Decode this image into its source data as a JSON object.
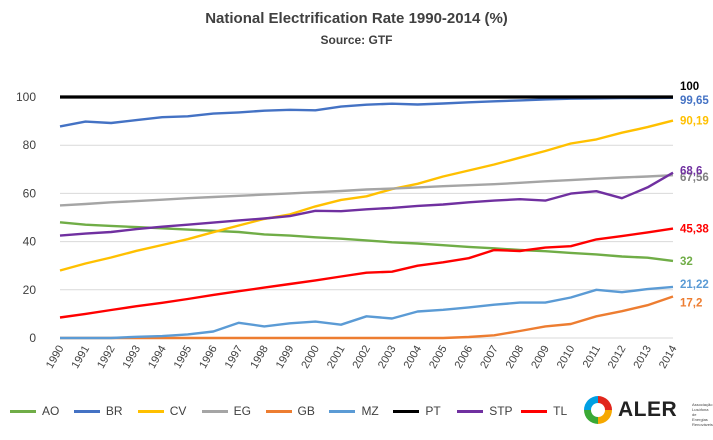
{
  "chart_data": {
    "type": "line",
    "title": "National Electrification Rate 1990-2014 (%)",
    "subtitle": "Source: GTF",
    "x": [
      "1990",
      "1991",
      "1992",
      "1993",
      "1994",
      "1995",
      "1996",
      "1997",
      "1998",
      "1999",
      "2000",
      "2001",
      "2002",
      "2003",
      "2004",
      "2005",
      "2006",
      "2007",
      "2008",
      "2009",
      "2010",
      "2011",
      "2012",
      "2013",
      "2014"
    ],
    "ylim": [
      0,
      100
    ],
    "yticks": [
      "0",
      "20",
      "40",
      "60",
      "80",
      "100"
    ],
    "grid": true,
    "legend_position": "bottom",
    "series": [
      {
        "name": "AO",
        "color": "#70ad47",
        "end_label": "32",
        "values": [
          48,
          47,
          46.5,
          46,
          45.5,
          45,
          44.5,
          44,
          43,
          42.5,
          41.8,
          41.2,
          40.5,
          39.7,
          39.2,
          38.5,
          37.8,
          37.2,
          36.5,
          36,
          35.3,
          34.7,
          33.8,
          33.3,
          32
        ]
      },
      {
        "name": "BR",
        "color": "#4472c4",
        "end_label": "99,65",
        "values": [
          87.8,
          89.8,
          89.2,
          90.4,
          91.6,
          92,
          93.1,
          93.6,
          94.3,
          94.7,
          94.5,
          96,
          96.8,
          97.2,
          96.9,
          97.3,
          97.8,
          98.2,
          98.6,
          99,
          99.3,
          99.4,
          99.55,
          99.6,
          99.65
        ]
      },
      {
        "name": "CV",
        "color": "#ffc000",
        "end_label": "90,19",
        "values": [
          28,
          30.9,
          33.4,
          36.2,
          38.6,
          41,
          43.9,
          46.7,
          49.4,
          51.3,
          54.6,
          57.3,
          58.8,
          61.8,
          64,
          67,
          69.5,
          72,
          74.8,
          77.6,
          80.7,
          82.4,
          85.2,
          87.5,
          90.19
        ]
      },
      {
        "name": "EG",
        "color": "#a5a5a5",
        "end_label": "67,56",
        "values": [
          55,
          55.6,
          56.3,
          56.8,
          57.4,
          58,
          58.5,
          59,
          59.5,
          60,
          60.5,
          61,
          61.6,
          62,
          62.5,
          63,
          63.4,
          63.8,
          64.4,
          65,
          65.5,
          66.1,
          66.6,
          67,
          67.56
        ]
      },
      {
        "name": "GB",
        "color": "#ed7d31",
        "end_label": "17,2",
        "values": [
          0,
          0,
          0,
          0,
          0,
          0,
          0,
          0,
          0,
          0,
          0,
          0,
          0,
          0,
          0,
          0,
          0.4,
          1.1,
          2.9,
          4.8,
          5.8,
          9,
          11.1,
          13.6,
          17.2
        ]
      },
      {
        "name": "MZ",
        "color": "#5b9bd5",
        "end_label": "21,22",
        "values": [
          0,
          0,
          0,
          0.5,
          0.8,
          1.5,
          2.7,
          6.3,
          4.8,
          6.1,
          6.8,
          5.5,
          9,
          8.1,
          11,
          11.7,
          12.7,
          13.8,
          14.7,
          14.7,
          16.8,
          20,
          19,
          20.3,
          21.22
        ]
      },
      {
        "name": "PT",
        "color": "#000000",
        "end_label": "100",
        "values": [
          100,
          100,
          100,
          100,
          100,
          100,
          100,
          100,
          100,
          100,
          100,
          100,
          100,
          100,
          100,
          100,
          100,
          100,
          100,
          100,
          100,
          100,
          100,
          100,
          100
        ]
      },
      {
        "name": "STP",
        "color": "#7030a0",
        "end_label": "68,6",
        "values": [
          42.5,
          43.3,
          44,
          45.2,
          46.2,
          47,
          47.9,
          48.8,
          49.6,
          50.6,
          52.8,
          52.6,
          53.4,
          54,
          54.8,
          55.4,
          56.3,
          57,
          57.6,
          57,
          59.9,
          60.9,
          58,
          62.5,
          68.6
        ]
      },
      {
        "name": "TL",
        "color": "#ff0000",
        "end_label": "45,38",
        "values": [
          8.5,
          10,
          11.6,
          13.2,
          14.6,
          16.2,
          17.9,
          19.4,
          20.9,
          22.4,
          23.9,
          25.5,
          27.1,
          27.5,
          30,
          31.4,
          33.1,
          36.5,
          36.1,
          37.5,
          38.1,
          40.9,
          42.3,
          43.8,
          45.38
        ]
      }
    ]
  },
  "logo": {
    "text": "ALER",
    "tagline": "Associação Lusófona de Energias Renováveis"
  }
}
